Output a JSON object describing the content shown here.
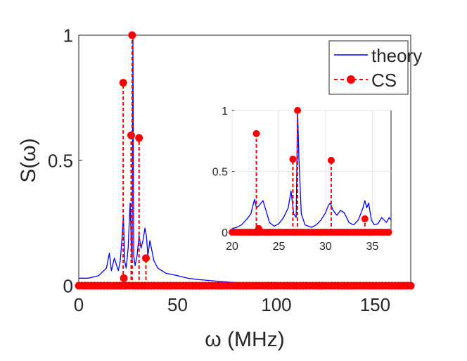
{
  "chart_data": [
    {
      "type": "line",
      "role": "main",
      "title": "",
      "xlabel": "ω (MHz)",
      "ylabel": "S(ω)",
      "xlim": [
        0,
        168
      ],
      "ylim": [
        0,
        1
      ],
      "xticks": [
        "0",
        "50",
        "100",
        "150"
      ],
      "xtick_values": [
        0,
        50,
        100,
        150
      ],
      "yticks": [
        "0",
        "0.5",
        "1"
      ],
      "ytick_values": [
        0,
        0.5,
        1
      ],
      "grid": false,
      "legend": {
        "location": "top-right",
        "entries": [
          "theory",
          "CS"
        ]
      },
      "series": [
        {
          "name": "theory",
          "style": "solid line",
          "color": "#0000ff",
          "x": [
            0,
            5,
            10,
            14,
            15.5,
            16.5,
            18,
            20,
            21,
            22,
            22.6,
            23.2,
            24,
            25,
            26,
            26.5,
            27,
            27.4,
            27.8,
            28.5,
            29.5,
            30.5,
            31.5,
            32.5,
            33.5,
            34.2,
            35,
            36,
            37,
            38,
            40,
            42,
            44,
            47,
            50,
            55,
            60,
            70,
            80,
            90,
            100,
            120,
            140,
            160,
            168
          ],
          "values": [
            0.03,
            0.03,
            0.04,
            0.07,
            0.13,
            0.06,
            0.11,
            0.06,
            0.1,
            0.2,
            0.28,
            0.1,
            0.07,
            0.15,
            0.33,
            0.18,
            0.1,
            1.0,
            0.12,
            0.08,
            0.12,
            0.2,
            0.15,
            0.18,
            0.23,
            0.2,
            0.12,
            0.18,
            0.14,
            0.1,
            0.07,
            0.06,
            0.05,
            0.045,
            0.04,
            0.03,
            0.025,
            0.018,
            0.012,
            0.008,
            0.005,
            0.003,
            0.002,
            0.001,
            0.001
          ]
        },
        {
          "name": "CS",
          "style": "dashed stems with circle markers",
          "color": "#ff0000",
          "x": [
            22.5,
            22.8,
            26.5,
            27.0,
            30.5,
            34.0
          ],
          "values": [
            0.81,
            0.03,
            0.6,
            1.0,
            0.59,
            0.11
          ],
          "baseline": "markers at 0 across entire x range"
        }
      ]
    },
    {
      "type": "line",
      "role": "inset",
      "title": "",
      "xlim": [
        20,
        37
      ],
      "ylim": [
        0,
        1
      ],
      "xticks": [
        "20",
        "25",
        "30",
        "35"
      ],
      "xtick_values": [
        20,
        25,
        30,
        35
      ],
      "yticks": [
        "0",
        "0.5",
        "1"
      ],
      "ytick_values": [
        0,
        0.5,
        1
      ],
      "grid": true,
      "series": [
        {
          "name": "theory",
          "color": "#0000ff",
          "x": [
            20,
            20.5,
            21,
            21.5,
            22,
            22.4,
            22.6,
            22.9,
            23.3,
            24,
            24.5,
            25,
            25.5,
            26,
            26.3,
            26.6,
            26.85,
            27.0,
            27.15,
            27.4,
            27.8,
            28.5,
            29,
            29.5,
            30,
            30.3,
            30.5,
            30.8,
            31.2,
            31.6,
            32,
            32.5,
            33,
            33.5,
            33.8,
            34.0,
            34.2,
            34.4,
            34.6,
            34.9,
            35.2,
            35.6,
            36,
            36.5,
            36.8,
            37
          ],
          "values": [
            0.03,
            0.04,
            0.06,
            0.1,
            0.15,
            0.27,
            0.2,
            0.22,
            0.26,
            0.08,
            0.05,
            0.07,
            0.12,
            0.2,
            0.34,
            0.15,
            0.12,
            1.0,
            0.6,
            0.15,
            0.06,
            0.04,
            0.06,
            0.1,
            0.16,
            0.22,
            0.24,
            0.18,
            0.14,
            0.18,
            0.16,
            0.08,
            0.06,
            0.1,
            0.16,
            0.2,
            0.26,
            0.2,
            0.24,
            0.1,
            0.06,
            0.07,
            0.12,
            0.08,
            0.12,
            0.1
          ]
        },
        {
          "name": "CS",
          "color": "#ff0000",
          "x": [
            22.6,
            22.85,
            26.5,
            27.0,
            30.6,
            34.2
          ],
          "values": [
            0.81,
            0.03,
            0.6,
            1.0,
            0.59,
            0.11
          ]
        }
      ]
    }
  ]
}
